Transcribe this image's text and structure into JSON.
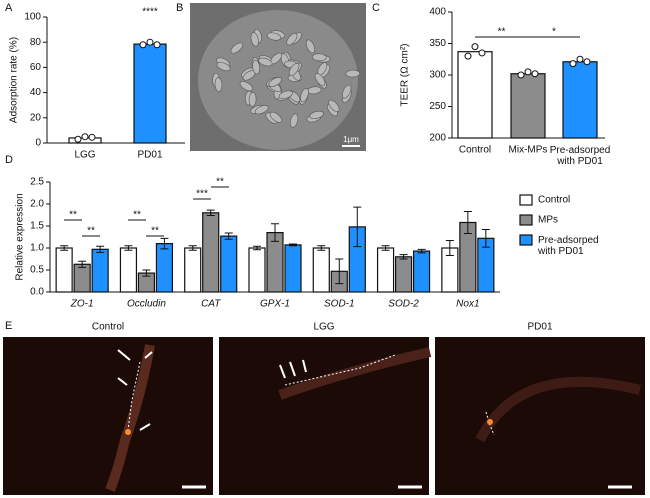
{
  "panel_labels": [
    "A",
    "B",
    "C",
    "D",
    "E"
  ],
  "images": {
    "B": {
      "scale_label": "1μm"
    },
    "E": {
      "titles": [
        "Control",
        "LGG",
        "PD01"
      ]
    }
  },
  "chart_data": [
    {
      "type": "bar",
      "ylabel": "Adsorption rate (%)",
      "categories": [
        "LGG",
        "PD01"
      ],
      "values": [
        4,
        78.5
      ],
      "colors": [
        "#ffffff",
        "#1e90ff"
      ],
      "points": [
        [
          3,
          5,
          4.5
        ],
        [
          78,
          80,
          78
        ]
      ],
      "ylim": [
        0,
        100
      ],
      "yticks": [
        0,
        20,
        40,
        60,
        80,
        100
      ],
      "annotations": [
        "****"
      ]
    },
    {
      "type": "bar",
      "ylabel": "TEER (Ω cm²)",
      "categories": [
        "Control",
        "Mix-MPs",
        "Pre-adsorped\nwith PD01"
      ],
      "values": [
        337,
        302,
        321
      ],
      "colors": [
        "#ffffff",
        "#8c8c8c",
        "#1e90ff"
      ],
      "points": [
        [
          330,
          345,
          335
        ],
        [
          300,
          305,
          302
        ],
        [
          318,
          325,
          321
        ]
      ],
      "ylim": [
        200,
        400
      ],
      "yticks": [
        200,
        250,
        300,
        350,
        400
      ],
      "annotations": [
        "**",
        "*"
      ]
    },
    {
      "type": "bar",
      "ylabel": "Relative expression",
      "categories": [
        "ZO-1",
        "Occludin",
        "CAT",
        "GPX-1",
        "SOD-1",
        "SOD-2",
        "Nox1"
      ],
      "category_style": "italic",
      "series": [
        {
          "name": "Control",
          "color": "#ffffff",
          "values": [
            1,
            1,
            1,
            1,
            1,
            1,
            1
          ],
          "errors": [
            0.05,
            0.05,
            0.05,
            0.04,
            0.05,
            0.05,
            0.17
          ]
        },
        {
          "name": "MPs",
          "color": "#8c8c8c",
          "values": [
            0.63,
            0.43,
            1.8,
            1.35,
            0.47,
            0.8,
            1.58
          ],
          "errors": [
            0.07,
            0.07,
            0.06,
            0.2,
            0.28,
            0.05,
            0.25
          ]
        },
        {
          "name": "Pre-adsorped\nwith PD01",
          "color": "#1e90ff",
          "values": [
            0.97,
            1.1,
            1.27,
            1.07,
            1.48,
            0.93,
            1.22
          ],
          "errors": [
            0.07,
            0.12,
            0.07,
            0.02,
            0.45,
            0.04,
            0.2
          ]
        }
      ],
      "ylim": [
        0,
        2.5
      ],
      "yticks": [
        {
          "value": 0,
          "label": "0.0"
        },
        0.5,
        {
          "value": 1,
          "label": "1.0"
        },
        1.5,
        {
          "value": 2,
          "label": "2.0"
        },
        2.5
      ],
      "annotations": [
        "**",
        "**",
        "**",
        "**",
        "***",
        "**"
      ]
    }
  ]
}
